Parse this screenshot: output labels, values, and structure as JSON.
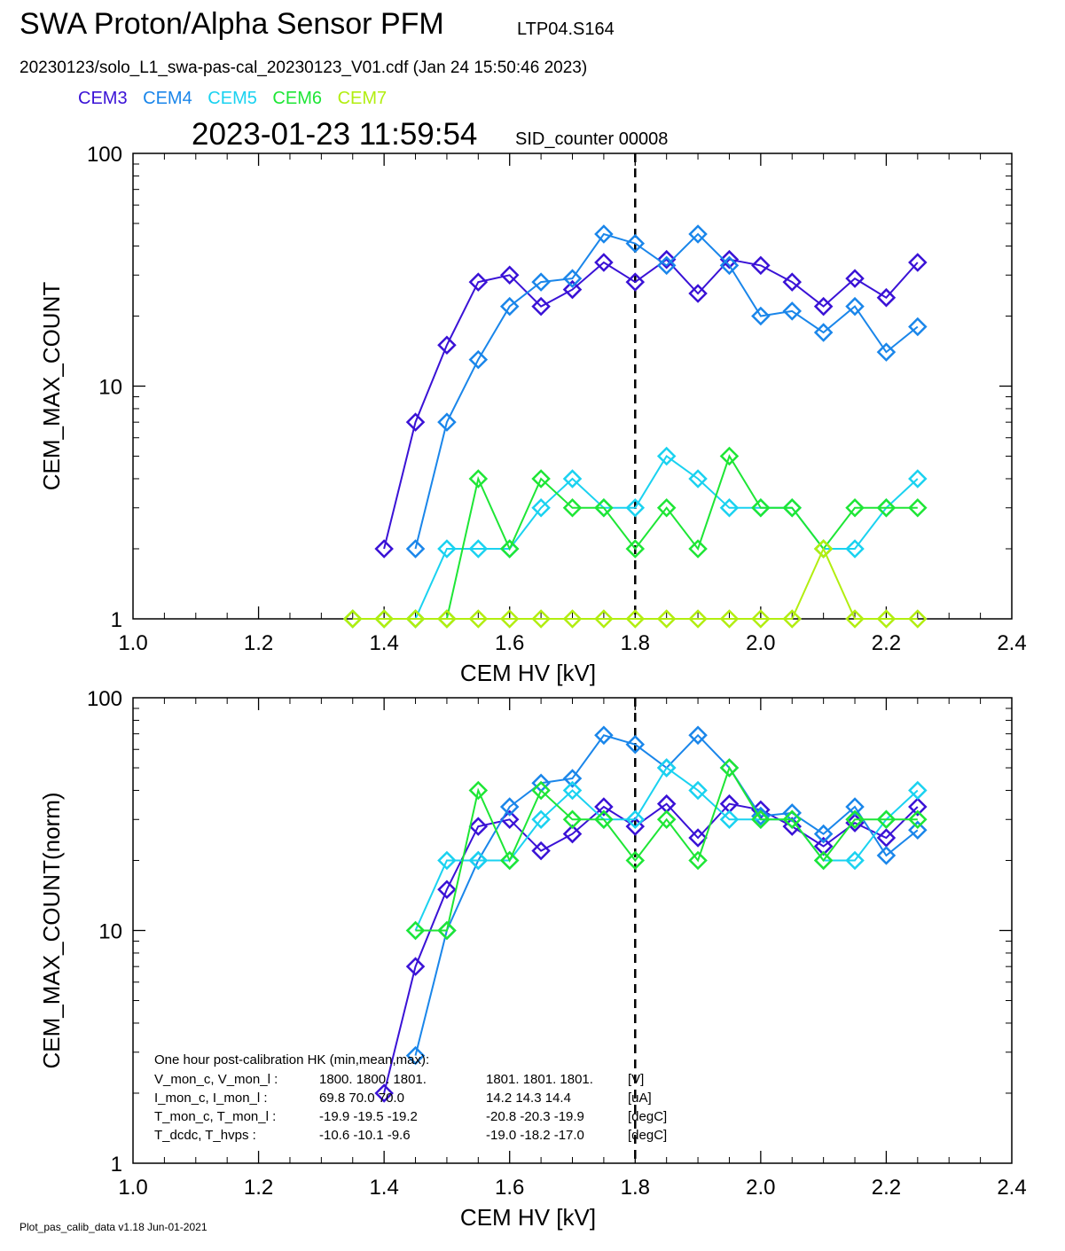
{
  "header": {
    "title": "SWA Proton/Alpha Sensor PFM",
    "tag": "LTP04.S164",
    "file": "20230123/solo_L1_swa-pas-cal_20230123_V01.cdf  (Jan 24 15:50:46 2023)",
    "datetime": "2023-01-23 11:59:54",
    "sid": "SID_counter 00008"
  },
  "legend": [
    {
      "name": "CEM3",
      "color": "#3a12d6"
    },
    {
      "name": "CEM4",
      "color": "#1a86ea"
    },
    {
      "name": "CEM5",
      "color": "#1ad2f0"
    },
    {
      "name": "CEM6",
      "color": "#1ee636"
    },
    {
      "name": "CEM7",
      "color": "#b2ee10"
    }
  ],
  "footer": "Plot_pas_calib_data v1.18 Jun-01-2021",
  "chart_data": [
    {
      "type": "line",
      "xlabel": "CEM HV [kV]",
      "ylabel": "CEM_MAX_COUNT",
      "xlim": [
        1.0,
        2.4
      ],
      "ylim": [
        1,
        100
      ],
      "yscale": "log",
      "xticks": [
        "1.0",
        "1.2",
        "1.4",
        "1.6",
        "1.8",
        "2.0",
        "2.2",
        "2.4"
      ],
      "yticks": [
        "1",
        "10",
        "100"
      ],
      "vline": 1.8,
      "series": [
        {
          "name": "CEM3",
          "color": "#3a12d6",
          "x": [
            1.4,
            1.45,
            1.5,
            1.55,
            1.6,
            1.65,
            1.7,
            1.75,
            1.8,
            1.85,
            1.9,
            1.95,
            2.0,
            2.05,
            2.1,
            2.15,
            2.2,
            2.25
          ],
          "y": [
            2,
            7,
            15,
            28,
            30,
            22,
            26,
            34,
            28,
            35,
            25,
            35,
            33,
            28,
            22,
            29,
            24,
            34
          ]
        },
        {
          "name": "CEM4",
          "color": "#1a86ea",
          "x": [
            1.45,
            1.5,
            1.55,
            1.6,
            1.65,
            1.7,
            1.75,
            1.8,
            1.85,
            1.9,
            1.95,
            2.0,
            2.05,
            2.1,
            2.15,
            2.2,
            2.25
          ],
          "y": [
            2,
            7,
            13,
            22,
            28,
            29,
            45,
            41,
            33,
            45,
            33,
            20,
            21,
            17,
            22,
            14,
            18
          ]
        },
        {
          "name": "CEM5",
          "color": "#1ad2f0",
          "x": [
            1.45,
            1.5,
            1.55,
            1.6,
            1.65,
            1.7,
            1.75,
            1.8,
            1.85,
            1.9,
            1.95,
            2.0,
            2.05,
            2.1,
            2.15,
            2.2,
            2.25
          ],
          "y": [
            1,
            2,
            2,
            2,
            3,
            4,
            3,
            3,
            5,
            4,
            3,
            3,
            3,
            2,
            2,
            3,
            4
          ]
        },
        {
          "name": "CEM6",
          "color": "#1ee636",
          "x": [
            1.35,
            1.4,
            1.45,
            1.5,
            1.55,
            1.6,
            1.65,
            1.7,
            1.75,
            1.8,
            1.85,
            1.9,
            1.95,
            2.0,
            2.05,
            2.1,
            2.15,
            2.2,
            2.25
          ],
          "y": [
            1,
            1,
            1,
            1,
            4,
            2,
            4,
            3,
            3,
            2,
            3,
            2,
            5,
            3,
            3,
            2,
            3,
            3,
            3
          ]
        },
        {
          "name": "CEM7",
          "color": "#b2ee10",
          "x": [
            1.35,
            1.4,
            1.45,
            1.5,
            1.55,
            1.6,
            1.65,
            1.7,
            1.75,
            1.8,
            1.85,
            1.9,
            1.95,
            2.0,
            2.05,
            2.1,
            2.15,
            2.2,
            2.25
          ],
          "y": [
            1,
            1,
            1,
            1,
            1,
            1,
            1,
            1,
            1,
            1,
            1,
            1,
            1,
            1,
            1,
            2,
            1,
            1,
            1
          ]
        }
      ]
    },
    {
      "type": "line",
      "xlabel": "CEM HV [kV]",
      "ylabel": "CEM_MAX_COUNT(norm)",
      "xlim": [
        1.0,
        2.4
      ],
      "ylim": [
        1,
        100
      ],
      "yscale": "log",
      "xticks": [
        "1.0",
        "1.2",
        "1.4",
        "1.6",
        "1.8",
        "2.0",
        "2.2",
        "2.4"
      ],
      "yticks": [
        "1",
        "10",
        "100"
      ],
      "vline": 1.8,
      "series": [
        {
          "name": "CEM3",
          "color": "#3a12d6",
          "x": [
            1.4,
            1.45,
            1.5,
            1.55,
            1.6,
            1.65,
            1.7,
            1.75,
            1.8,
            1.85,
            1.9,
            1.95,
            2.0,
            2.05,
            2.1,
            2.15,
            2.2,
            2.25
          ],
          "y": [
            2,
            7,
            15,
            28,
            30,
            22,
            26,
            34,
            28,
            35,
            25,
            35,
            33,
            28,
            23,
            29,
            25,
            34
          ]
        },
        {
          "name": "CEM4",
          "color": "#1a86ea",
          "x": [
            1.45,
            1.5,
            1.55,
            1.6,
            1.65,
            1.7,
            1.75,
            1.8,
            1.85,
            1.9,
            1.95,
            2.0,
            2.05,
            2.1,
            2.15,
            2.2,
            2.25
          ],
          "y": [
            2.9,
            10,
            20,
            34,
            43,
            45,
            69,
            63,
            50,
            69,
            50,
            31,
            32,
            26,
            34,
            21,
            27
          ]
        },
        {
          "name": "CEM5",
          "color": "#1ad2f0",
          "x": [
            1.45,
            1.5,
            1.55,
            1.6,
            1.65,
            1.7,
            1.75,
            1.8,
            1.85,
            1.9,
            1.95,
            2.0,
            2.05,
            2.1,
            2.15,
            2.2,
            2.25
          ],
          "y": [
            10,
            20,
            20,
            20,
            30,
            40,
            30,
            30,
            50,
            40,
            30,
            30,
            30,
            20,
            20,
            30,
            40
          ]
        },
        {
          "name": "CEM6",
          "color": "#1ee636",
          "x": [
            1.45,
            1.5,
            1.55,
            1.6,
            1.65,
            1.7,
            1.75,
            1.8,
            1.85,
            1.9,
            1.95,
            2.0,
            2.05,
            2.1,
            2.15,
            2.2,
            2.25
          ],
          "y": [
            10,
            10,
            40,
            20,
            40,
            30,
            30,
            20,
            30,
            20,
            50,
            30,
            30,
            20,
            30,
            30,
            30
          ]
        }
      ],
      "annotation": {
        "title": "One hour post-calibration HK (min,mean,max):",
        "rows": [
          {
            "label": "V_mon_c, V_mon_l :",
            "a": "1800.  1800.  1801.",
            "b": "1801.  1801.  1801.",
            "unit": "[V]"
          },
          {
            "label": "I_mon_c,  I_mon_l :",
            "a": "69.8   70.0   70.0",
            "b": "14.2   14.3   14.4",
            "unit": "[uA]"
          },
          {
            "label": "T_mon_c, T_mon_l :",
            "a": "-19.9  -19.5  -19.2",
            "b": "-20.8  -20.3  -19.9",
            "unit": "[degC]"
          },
          {
            "label": "T_dcdc,    T_hvps :",
            "a": "-10.6  -10.1   -9.6",
            "b": "-19.0  -18.2  -17.0",
            "unit": "[degC]"
          }
        ]
      }
    }
  ]
}
